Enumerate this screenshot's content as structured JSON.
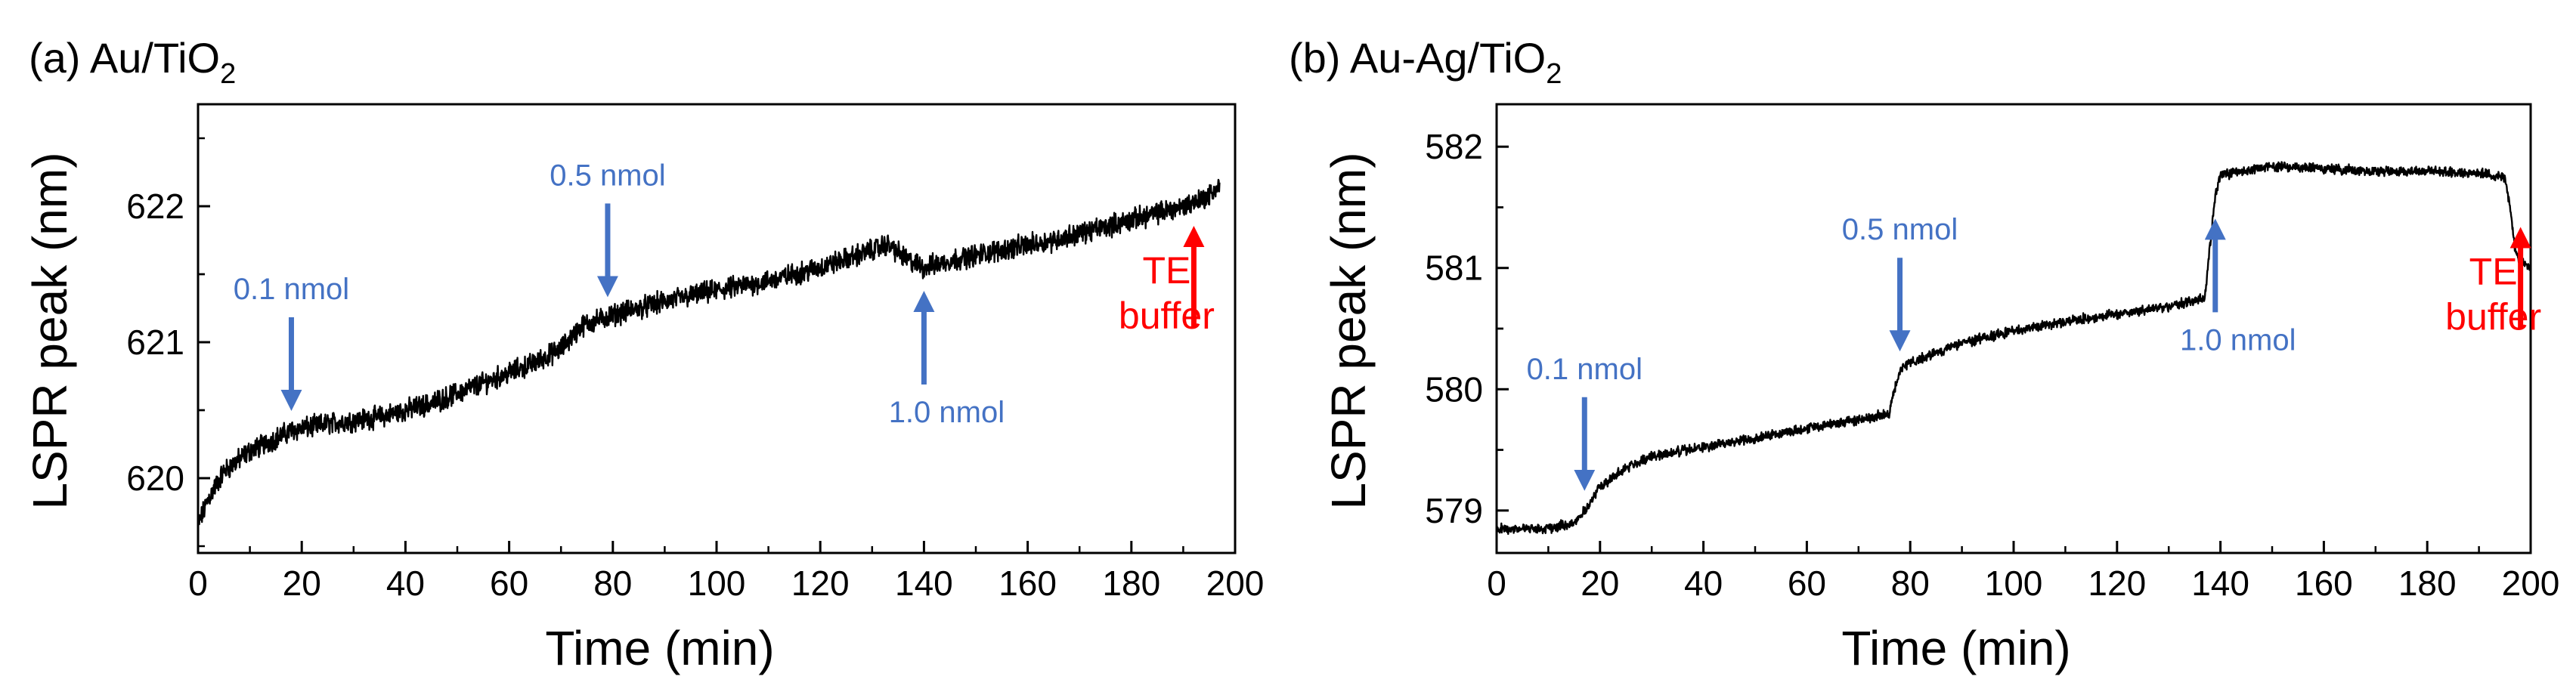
{
  "colors": {
    "annotation": "#4472C4",
    "buffer": "#FF0000",
    "trace": "#000000",
    "axis": "#000000"
  },
  "chart_data": [
    {
      "type": "line",
      "panel_label": "(a) Au/TiO",
      "panel_subscript": "2",
      "xlabel": "Time (min)",
      "ylabel": "LSPR peak (nm)",
      "xlim": [
        0,
        200
      ],
      "ylim": [
        619.45,
        622.75
      ],
      "xticks": [
        0,
        20,
        40,
        60,
        80,
        100,
        120,
        140,
        160,
        180,
        200
      ],
      "yticks": [
        620,
        621,
        622
      ],
      "x_tick_labels": [
        "0",
        "20",
        "40",
        "60",
        "80",
        "100",
        "120",
        "140",
        "160",
        "180",
        "200"
      ],
      "y_tick_labels": [
        "620",
        "621",
        "622"
      ],
      "series": [
        {
          "name": "Au/TiO2",
          "x": [
            0,
            2,
            5,
            10,
            18,
            25,
            35,
            45,
            55,
            65,
            70,
            74,
            80,
            90,
            100,
            110,
            120,
            128,
            133,
            137,
            140,
            145,
            155,
            165,
            175,
            185,
            190,
            195,
            197
          ],
          "y": [
            619.65,
            619.85,
            620.05,
            620.2,
            620.35,
            620.4,
            620.45,
            620.55,
            620.7,
            620.85,
            620.95,
            621.12,
            621.2,
            621.3,
            621.38,
            621.45,
            621.55,
            621.65,
            621.72,
            621.6,
            621.55,
            621.6,
            621.68,
            621.75,
            621.85,
            621.95,
            622.0,
            622.08,
            622.15
          ],
          "noise": 0.12
        }
      ],
      "annotations": [
        {
          "text": "0.1 nmol",
          "x": 18,
          "direction": "down",
          "color_key": "annotation"
        },
        {
          "text": "0.5 nmol",
          "x": 79,
          "direction": "down",
          "color_key": "annotation"
        },
        {
          "text": "1.0 nmol",
          "x": 140,
          "direction": "up",
          "color_key": "annotation"
        },
        {
          "text": "TE",
          "text2": "buffer",
          "x": 190,
          "direction": "up",
          "color_key": "buffer"
        }
      ]
    },
    {
      "type": "line",
      "panel_label": "(b) Au-Ag/TiO",
      "panel_subscript": "2",
      "xlabel": "Time (min)",
      "ylabel": "LSPR peak (nm)",
      "xlim": [
        0,
        200
      ],
      "ylim": [
        578.65,
        582.35
      ],
      "xticks": [
        0,
        20,
        40,
        60,
        80,
        100,
        120,
        140,
        160,
        180,
        200
      ],
      "yticks": [
        579,
        580,
        581,
        582
      ],
      "x_tick_labels": [
        "0",
        "20",
        "40",
        "60",
        "80",
        "100",
        "120",
        "140",
        "160",
        "180",
        "200"
      ],
      "y_tick_labels": [
        "579",
        "580",
        "581",
        "582"
      ],
      "series": [
        {
          "name": "Au-Ag/TiO2",
          "x": [
            0,
            10,
            15,
            18,
            20,
            25,
            30,
            40,
            50,
            60,
            70,
            76,
            77,
            78,
            80,
            90,
            100,
            110,
            120,
            130,
            137,
            138,
            139,
            140,
            150,
            160,
            170,
            180,
            190,
            195,
            196,
            197,
            198,
            200
          ],
          "y": [
            578.85,
            578.85,
            578.9,
            579.05,
            579.2,
            579.35,
            579.45,
            579.52,
            579.6,
            579.68,
            579.75,
            579.8,
            580.0,
            580.15,
            580.22,
            580.38,
            580.48,
            580.56,
            580.62,
            580.68,
            580.75,
            581.2,
            581.6,
            581.76,
            581.84,
            581.82,
            581.8,
            581.8,
            581.78,
            581.75,
            581.5,
            581.15,
            581.05,
            581.0
          ],
          "noise": 0.06
        }
      ],
      "annotations": [
        {
          "text": "0.1 nmol",
          "x": 17,
          "direction": "down",
          "color_key": "annotation"
        },
        {
          "text": "0.5 nmol",
          "x": 78,
          "direction": "down",
          "color_key": "annotation"
        },
        {
          "text": "1.0 nmol",
          "x": 139,
          "direction": "up",
          "color_key": "annotation"
        },
        {
          "text": "TE",
          "text2": "buffer",
          "x": 196,
          "direction": "up",
          "color_key": "buffer"
        }
      ]
    }
  ]
}
